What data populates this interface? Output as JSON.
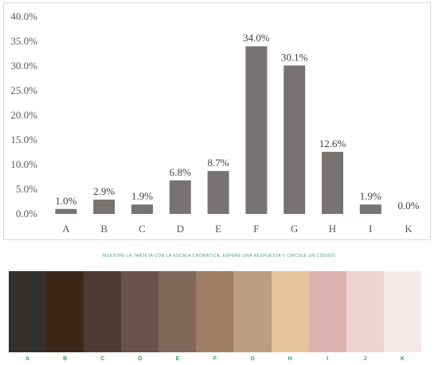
{
  "chart_data": {
    "type": "bar",
    "categories": [
      "A",
      "B",
      "C",
      "D",
      "E",
      "F",
      "G",
      "H",
      "I",
      "K"
    ],
    "values": [
      1.0,
      2.9,
      1.9,
      6.8,
      8.7,
      34.0,
      30.1,
      12.6,
      1.9,
      0.0
    ],
    "data_labels": [
      "1.0%",
      "2.9%",
      "1.9%",
      "6.8%",
      "8.7%",
      "34.0%",
      "30.1%",
      "12.6%",
      "1.9%",
      "0.0%"
    ],
    "y_ticks": [
      0,
      5,
      10,
      15,
      20,
      25,
      30,
      35,
      40
    ],
    "y_tick_labels": [
      "0.0%",
      "5.0%",
      "10.0%",
      "15.0%",
      "20.0%",
      "25.0%",
      "30.0%",
      "35.0%",
      "40.0%"
    ],
    "ylim": [
      0,
      40
    ],
    "grid": false,
    "bar_color": "#777372"
  },
  "scale": {
    "instruction": "MUESTRE LA TARJETA CON LA ESCALA CROMATICA, ESPERE UNA RESPUESTA Y CIRCULE UN CÓDIGO",
    "label_color": "#2fa36b",
    "swatches": [
      {
        "label": "A",
        "color": "#34302d"
      },
      {
        "label": "B",
        "color": "#3d2818"
      },
      {
        "label": "C",
        "color": "#4d3b33"
      },
      {
        "label": "D",
        "color": "#6b5248"
      },
      {
        "label": "E",
        "color": "#806656"
      },
      {
        "label": "F",
        "color": "#9e7e62"
      },
      {
        "label": "G",
        "color": "#b89e83"
      },
      {
        "label": "H",
        "color": "#e6c49b"
      },
      {
        "label": "I",
        "color": "#ddb2ae"
      },
      {
        "label": "J",
        "color": "#efd2d2"
      },
      {
        "label": "K",
        "color": "#f5e8e8"
      }
    ]
  }
}
